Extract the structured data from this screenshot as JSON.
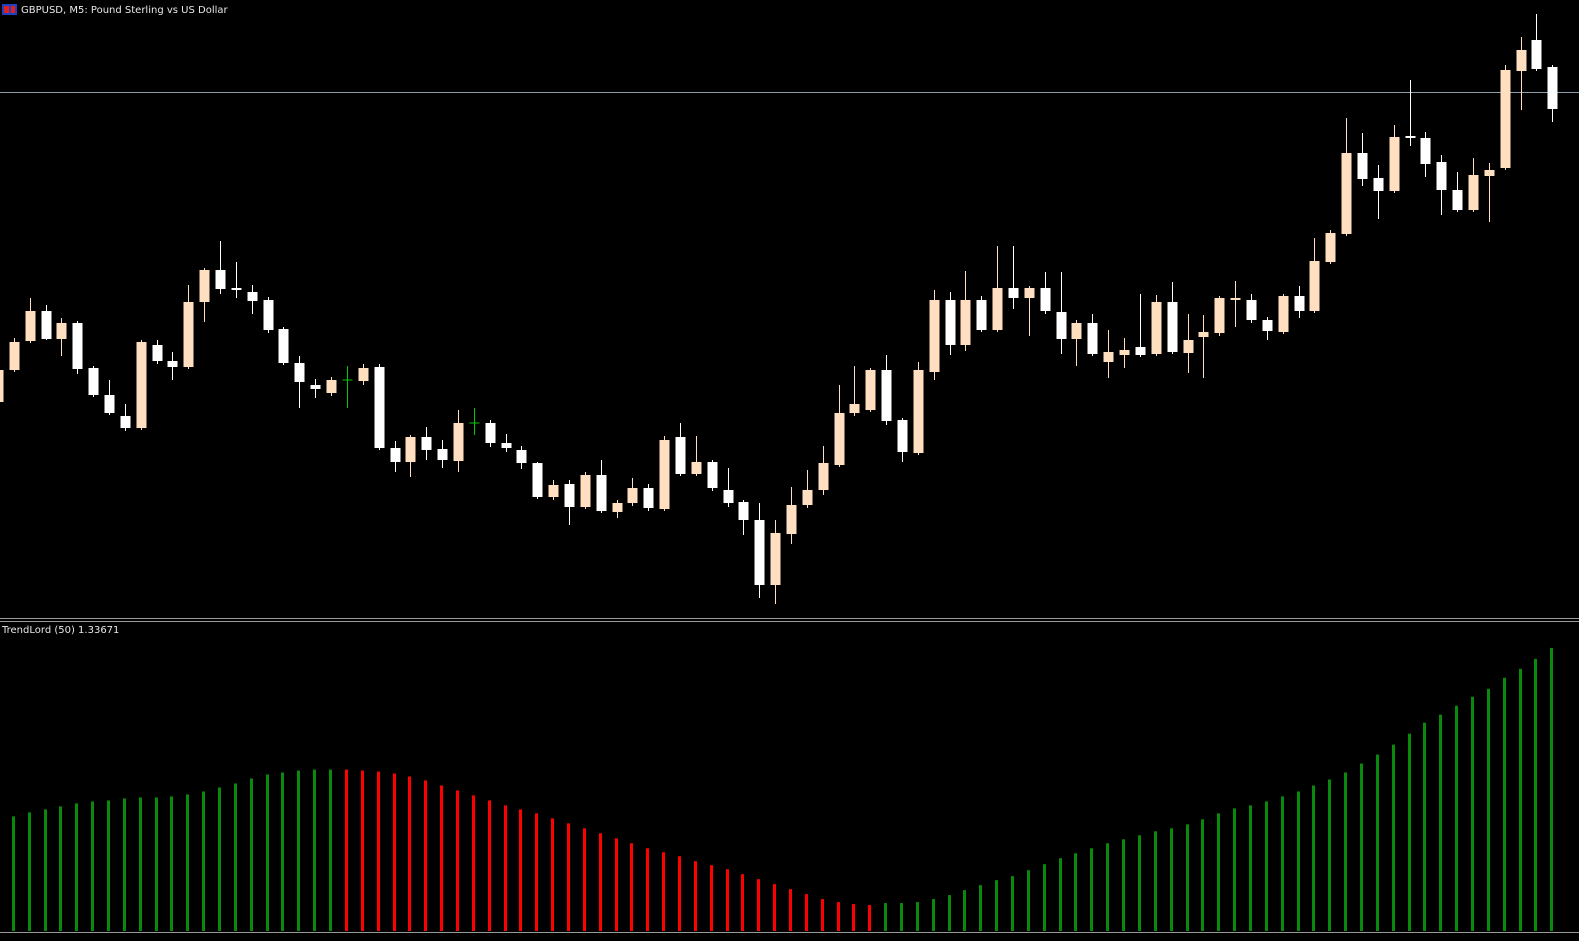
{
  "chart_data": [
    {
      "type": "candlestick",
      "title": "GBPUSD, M5:  Pound Sterling vs US Dollar",
      "open": [
        218,
        250,
        279,
        309,
        281,
        297,
        252,
        225,
        204,
        192,
        275,
        259,
        253,
        318,
        350,
        332,
        328,
        320,
        291,
        257,
        235,
        227,
        240,
        239,
        253,
        172,
        158,
        183,
        171,
        159,
        197,
        197,
        177,
        170,
        157,
        123,
        136,
        113,
        145,
        108,
        117,
        132,
        111,
        183,
        146,
        158,
        130,
        118,
        100,
        35,
        86,
        115,
        130,
        155,
        207,
        210,
        250,
        200,
        167,
        248,
        320,
        275,
        320,
        290,
        332,
        322,
        332,
        308,
        281,
        297,
        258,
        265,
        273,
        266,
        318,
        267,
        283,
        287,
        320,
        320,
        300,
        288,
        324,
        309,
        358,
        386,
        467,
        442,
        429,
        484,
        482,
        458,
        430,
        410,
        444,
        452,
        549,
        580,
        553
      ],
      "high": [
        255,
        282,
        322,
        315,
        302,
        299,
        254,
        240,
        216,
        280,
        280,
        268,
        335,
        352,
        379,
        358,
        335,
        323,
        293,
        264,
        241,
        243,
        254,
        256,
        256,
        179,
        185,
        193,
        180,
        210,
        212,
        200,
        186,
        174,
        158,
        140,
        140,
        148,
        160,
        120,
        142,
        136,
        184,
        197,
        184,
        160,
        152,
        120,
        117,
        100,
        133,
        150,
        174,
        235,
        254,
        252,
        265,
        202,
        258,
        330,
        328,
        349,
        324,
        374,
        374,
        334,
        348,
        348,
        300,
        306,
        290,
        282,
        326,
        325,
        338,
        306,
        305,
        324,
        339,
        326,
        303,
        326,
        334,
        382,
        390,
        502,
        487,
        455,
        495,
        540,
        488,
        465,
        448,
        462,
        457,
        555,
        583,
        606,
        555
      ],
      "low": [
        215,
        248,
        277,
        280,
        264,
        246,
        223,
        205,
        189,
        190,
        256,
        240,
        251,
        298,
        326,
        322,
        306,
        287,
        255,
        212,
        222,
        224,
        212,
        235,
        170,
        148,
        143,
        160,
        152,
        148,
        185,
        173,
        168,
        151,
        121,
        120,
        95,
        111,
        107,
        102,
        114,
        109,
        109,
        144,
        144,
        129,
        113,
        85,
        22,
        16,
        76,
        112,
        125,
        153,
        204,
        208,
        195,
        158,
        165,
        240,
        265,
        269,
        288,
        288,
        311,
        284,
        306,
        266,
        254,
        264,
        242,
        252,
        263,
        264,
        266,
        247,
        242,
        284,
        293,
        297,
        280,
        286,
        302,
        307,
        356,
        384,
        434,
        401,
        427,
        474,
        443,
        405,
        408,
        408,
        398,
        450,
        510,
        549,
        498
      ],
      "close": [
        250,
        278,
        309,
        281,
        297,
        251,
        225,
        207,
        192,
        278,
        259,
        253,
        318,
        350,
        331,
        330,
        319,
        290,
        257,
        238,
        231,
        240,
        240,
        252,
        172,
        158,
        183,
        170,
        160,
        197,
        197,
        177,
        172,
        157,
        123,
        135,
        113,
        145,
        109,
        117,
        132,
        112,
        180,
        146,
        158,
        132,
        117,
        100,
        35,
        87,
        115,
        130,
        157,
        207,
        216,
        250,
        199,
        168,
        250,
        320,
        275,
        320,
        290,
        332,
        322,
        332,
        309,
        281,
        297,
        266,
        268,
        270,
        265,
        318,
        268,
        280,
        288,
        322,
        322,
        300,
        289,
        324,
        309,
        359,
        387,
        467,
        441,
        429,
        483,
        482,
        456,
        430,
        410,
        445,
        450,
        550,
        570,
        551,
        511
      ],
      "colors": {
        "up": "#ffdfc0",
        "down": "#ffffff",
        "doji": "#00c800"
      },
      "hline": 528,
      "hline_color": "#8c9cac",
      "ylim": [
        0,
        620
      ]
    },
    {
      "type": "bar",
      "title": "TrendLord (50) 1.33671",
      "series": [
        {
          "color": "#0a8a0a",
          "values": [
            null,
            115,
            119,
            122,
            125,
            128,
            130,
            131,
            133,
            134,
            134,
            135,
            137,
            140,
            144,
            148,
            153,
            157,
            159,
            161,
            162,
            162,
            null,
            null,
            null,
            null,
            null,
            null,
            null,
            null,
            null,
            null,
            null,
            null,
            null,
            null,
            null,
            null,
            null,
            null,
            null,
            null,
            null,
            null,
            null,
            null,
            null,
            null,
            null,
            null,
            null,
            null,
            null,
            null,
            null,
            null,
            28,
            28,
            29,
            32,
            36,
            41,
            46,
            51,
            55,
            61,
            67,
            73,
            78,
            83,
            88,
            92,
            96,
            100,
            103,
            107,
            112,
            118,
            123,
            126,
            130,
            135,
            140,
            146,
            152,
            159,
            168,
            177,
            187,
            198,
            209,
            217,
            226,
            235,
            243,
            254,
            263,
            273,
            284
          ]
        },
        {
          "color": "#ff0000",
          "values": [
            null,
            null,
            null,
            null,
            null,
            null,
            null,
            null,
            null,
            null,
            null,
            null,
            null,
            null,
            null,
            null,
            null,
            null,
            null,
            null,
            null,
            null,
            162,
            161,
            160,
            158,
            155,
            151,
            146,
            141,
            136,
            131,
            126,
            122,
            118,
            113,
            108,
            103,
            98,
            93,
            88,
            83,
            79,
            75,
            70,
            66,
            62,
            57,
            52,
            47,
            42,
            37,
            32,
            29,
            27,
            26,
            null,
            null,
            null,
            null,
            null,
            null,
            null,
            null,
            null,
            null,
            null,
            null,
            null,
            null,
            null,
            null,
            null,
            null,
            null,
            null,
            null,
            null,
            null,
            null,
            null,
            null,
            null,
            null,
            null,
            null,
            null,
            null,
            null,
            null,
            null,
            null,
            null,
            null,
            null,
            null,
            null,
            null,
            null
          ]
        }
      ],
      "ylim": [
        0,
        310
      ]
    }
  ]
}
